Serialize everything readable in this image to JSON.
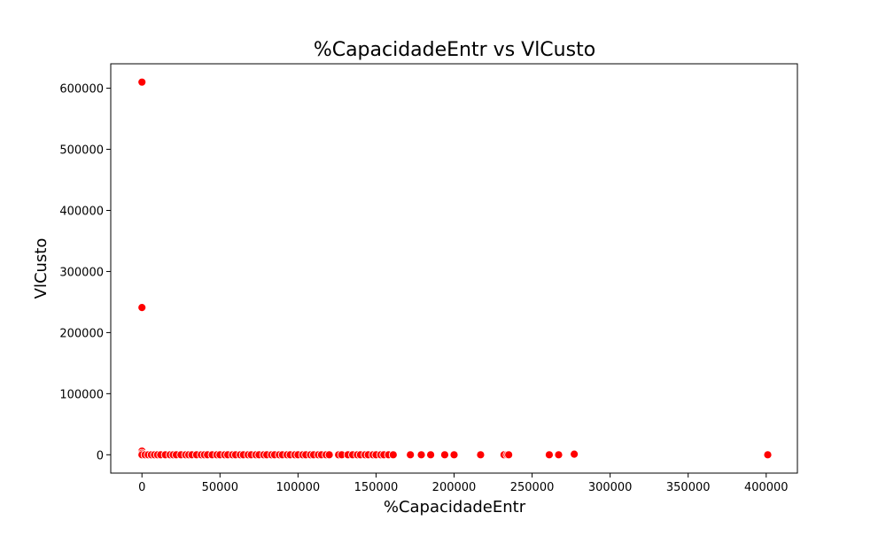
{
  "chart_data": {
    "type": "scatter",
    "title": "%CapacidadeEntr vs VlCusto",
    "xlabel": "%CapacidadeEntr",
    "ylabel": "VlCusto",
    "xlim": [
      -20000,
      420000
    ],
    "ylim": [
      -30000,
      640000
    ],
    "x_ticks": [
      0,
      50000,
      100000,
      150000,
      200000,
      250000,
      300000,
      350000,
      400000
    ],
    "y_ticks": [
      0,
      100000,
      200000,
      300000,
      400000,
      500000,
      600000
    ],
    "x_tick_labels": [
      "0",
      "50000",
      "100000",
      "150000",
      "200000",
      "250000",
      "300000",
      "350000",
      "400000"
    ],
    "y_tick_labels": [
      "0",
      "100000",
      "200000",
      "300000",
      "400000",
      "500000",
      "600000"
    ],
    "grid": false,
    "legend": false,
    "marker_color": "#ff0000",
    "marker_edge_color": "#ffffff",
    "series": [
      {
        "x": [
          0,
          0,
          0,
          0,
          0,
          2000,
          4000,
          6000,
          8000,
          10000,
          12000,
          15000,
          18000,
          20000,
          22000,
          25000,
          28000,
          30000,
          32000,
          35000,
          38000,
          40000,
          42000,
          45000,
          48000,
          50000,
          53000,
          55000,
          58000,
          60000,
          63000,
          65000,
          68000,
          70000,
          73000,
          75000,
          78000,
          80000,
          83000,
          85000,
          88000,
          90000,
          93000,
          95000,
          98000,
          100000,
          103000,
          105000,
          108000,
          110000,
          113000,
          115000,
          118000,
          120000,
          126000,
          128000,
          132000,
          135000,
          138000,
          140000,
          143000,
          145000,
          148000,
          150000,
          153000,
          155000,
          158000,
          161000,
          172000,
          179000,
          185000,
          194000,
          200000,
          217000,
          232000,
          234000,
          235000,
          261000,
          267000,
          277000,
          401000
        ],
        "y": [
          610000,
          241000,
          6000,
          2500,
          0,
          0,
          0,
          0,
          0,
          0,
          0,
          0,
          0,
          0,
          0,
          0,
          0,
          0,
          0,
          0,
          0,
          0,
          0,
          0,
          0,
          0,
          0,
          0,
          0,
          0,
          0,
          0,
          0,
          0,
          0,
          0,
          0,
          0,
          0,
          0,
          0,
          0,
          0,
          0,
          0,
          0,
          0,
          0,
          0,
          0,
          0,
          0,
          0,
          0,
          0,
          0,
          0,
          0,
          0,
          0,
          0,
          0,
          0,
          0,
          0,
          0,
          0,
          0,
          0,
          0,
          0,
          0,
          0,
          0,
          0,
          0,
          0,
          0,
          0,
          1000,
          0
        ]
      }
    ]
  }
}
